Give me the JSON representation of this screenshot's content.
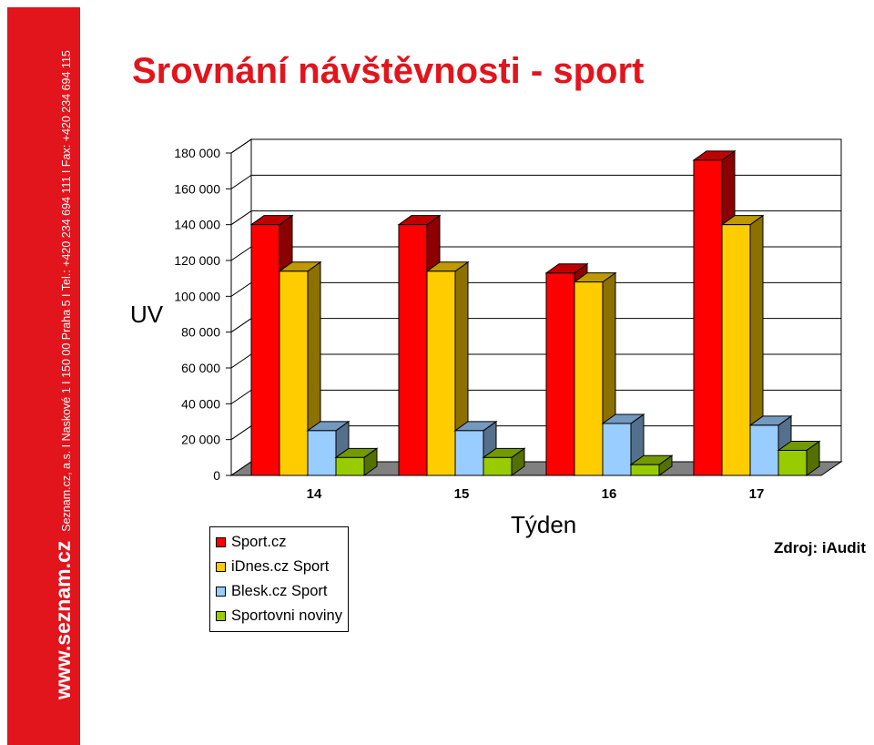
{
  "sidebar": {
    "brand": "www.seznam.cz",
    "contact": "Seznam.cz, a.s.  I  Naskové 1  I  150 00  Praha 5  I  Tel.: +420 234 694 111  I  Fax: +420 234 694 115"
  },
  "page": {
    "title": "Srovnání návštěvnosti - sport",
    "source": "Zdroj: iAudit"
  },
  "colors": {
    "accent": "#e2141c",
    "series": [
      "#ff0000",
      "#ffcc00",
      "#99ccff",
      "#99cc00"
    ]
  },
  "chart_data": {
    "type": "bar",
    "title": "Srovnání návštěvnosti - sport",
    "xlabel": "Týden",
    "ylabel": "UV",
    "categories": [
      "14",
      "15",
      "16",
      "17"
    ],
    "ylim": [
      0,
      180000
    ],
    "yticks": [
      {
        "value": 0,
        "label": "0"
      },
      {
        "value": 20000,
        "label": "20 000"
      },
      {
        "value": 40000,
        "label": "40 000"
      },
      {
        "value": 60000,
        "label": "60 000"
      },
      {
        "value": 80000,
        "label": "80 000"
      },
      {
        "value": 100000,
        "label": "100 000"
      },
      {
        "value": 120000,
        "label": "120 000"
      },
      {
        "value": 140000,
        "label": "140 000"
      },
      {
        "value": 160000,
        "label": "160 000"
      },
      {
        "value": 180000,
        "label": "180 000"
      }
    ],
    "grid": true,
    "legend": "bottom-left",
    "series": [
      {
        "name": "Sport.cz",
        "values": [
          140000,
          140000,
          113000,
          176000
        ]
      },
      {
        "name": "iDnes.cz Sport",
        "values": [
          114000,
          114000,
          108000,
          140000
        ]
      },
      {
        "name": "Blesk.cz Sport",
        "values": [
          25000,
          25000,
          29000,
          28000
        ]
      },
      {
        "name": "Sportovni noviny",
        "values": [
          10000,
          10000,
          6000,
          14000
        ]
      }
    ]
  }
}
